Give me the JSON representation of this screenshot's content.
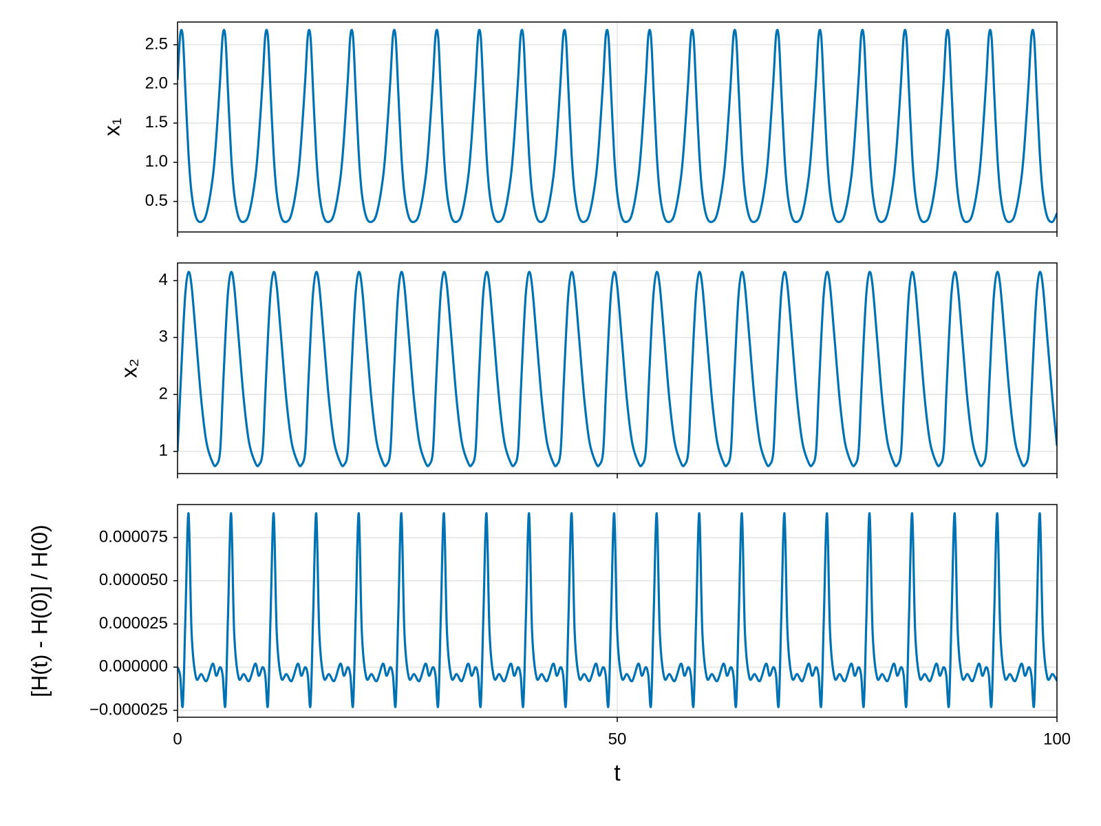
{
  "chart_data": {
    "type": "line",
    "xlabel": "t",
    "xlim": [
      0,
      100
    ],
    "xticks": [
      0,
      50,
      100
    ],
    "grid": true,
    "x": [
      0,
      0.3,
      0.6,
      0.9,
      1.25,
      1.6,
      2.1,
      2.7,
      3.3,
      4,
      4.4,
      4.84,
      5.14,
      5.44,
      5.74,
      6.09,
      6.44,
      6.94,
      7.54,
      8.14,
      8.84,
      9.24,
      9.68,
      9.98,
      10.28,
      10.58,
      10.93,
      11.28,
      11.78,
      12.38,
      12.98,
      13.68,
      14.08,
      14.52,
      14.82,
      15.12,
      15.42,
      15.77,
      16.12,
      16.62,
      17.22,
      17.82,
      18.52,
      18.92,
      19.36,
      19.66,
      19.96,
      20.26,
      20.61,
      20.96,
      21.46,
      22.06,
      22.66,
      23.36,
      23.76,
      24.2,
      24.5,
      24.8,
      25.1,
      25.45,
      25.8,
      26.3,
      26.9,
      27.5,
      28.2,
      28.6,
      29.04,
      29.34,
      29.64,
      29.94,
      30.29,
      30.64,
      31.14,
      31.74,
      32.34,
      33.04,
      33.44,
      33.88,
      34.18,
      34.48,
      34.78,
      35.13,
      35.48,
      35.98,
      36.58,
      37.18,
      37.88,
      38.28,
      38.72,
      39.02,
      39.32,
      39.62,
      39.97,
      40.32,
      40.82,
      41.42,
      42.02,
      42.72,
      43.12,
      43.56,
      43.86,
      44.16,
      44.46,
      44.81,
      45.16,
      45.66,
      46.26,
      46.86,
      47.56,
      47.96,
      48.4,
      48.7,
      49,
      49.3,
      49.65,
      50,
      50.5,
      51.1,
      51.7,
      52.4,
      52.8,
      53.24,
      53.54,
      53.84,
      54.14,
      54.49,
      54.84,
      55.34,
      55.94,
      56.54,
      57.24,
      57.64,
      58.08,
      58.38,
      58.68,
      58.98,
      59.33,
      59.68,
      60.18,
      60.78,
      61.38,
      62.08,
      62.48,
      62.92,
      63.22,
      63.52,
      63.82,
      64.17,
      64.52,
      65.02,
      65.62,
      66.22,
      66.92,
      67.32,
      67.76,
      68.06,
      68.36,
      68.66,
      69.01,
      69.36,
      69.86,
      70.46,
      71.06,
      71.76,
      72.16,
      72.6,
      72.9,
      73.2,
      73.5,
      73.85,
      74.2,
      74.7,
      75.3,
      75.9,
      76.6,
      77,
      77.44,
      77.74,
      78.04,
      78.34,
      78.69,
      79.04,
      79.54,
      80.14,
      80.74,
      81.44,
      81.84,
      82.28,
      82.58,
      82.88,
      83.18,
      83.53,
      83.88,
      84.38,
      84.98,
      85.58,
      86.28,
      86.68,
      87.12,
      87.42,
      87.72,
      88.02,
      88.37,
      88.72,
      89.22,
      89.82,
      90.42,
      91.12,
      91.52,
      91.96,
      92.26,
      92.56,
      92.86,
      93.21,
      93.56,
      94.06,
      94.66,
      95.26,
      95.96,
      96.36,
      96.8,
      97.1,
      97.4,
      97.7,
      98.05,
      98.4,
      98.9,
      99.5,
      100
    ],
    "panels": [
      {
        "ylabel": "x₁",
        "ylim": [
          0.11,
          2.79
        ],
        "yticks": [
          0.5,
          {
            "value": 1,
            "label": "1.0"
          },
          1.5,
          {
            "value": 2,
            "label": "2.0"
          },
          2.5
        ],
        "series": [
          {
            "color": "#0072b2",
            "values": [
              2.05,
              2.62,
              2.6,
              1.9,
              1.1,
              0.6,
              0.3,
              0.24,
              0.35,
              0.8,
              1.3,
              2.05,
              2.62,
              2.6,
              1.9,
              1.1,
              0.6,
              0.3,
              0.24,
              0.35,
              0.8,
              1.3,
              2.05,
              2.62,
              2.6,
              1.9,
              1.1,
              0.6,
              0.3,
              0.24,
              0.35,
              0.8,
              1.3,
              2.05,
              2.62,
              2.6,
              1.9,
              1.1,
              0.6,
              0.3,
              0.24,
              0.35,
              0.8,
              1.3,
              2.05,
              2.62,
              2.6,
              1.9,
              1.1,
              0.6,
              0.3,
              0.24,
              0.35,
              0.8,
              1.3,
              2.05,
              2.62,
              2.6,
              1.9,
              1.1,
              0.6,
              0.3,
              0.24,
              0.35,
              0.8,
              1.3,
              2.05,
              2.62,
              2.6,
              1.9,
              1.1,
              0.6,
              0.3,
              0.24,
              0.35,
              0.8,
              1.3,
              2.05,
              2.62,
              2.6,
              1.9,
              1.1,
              0.6,
              0.3,
              0.24,
              0.35,
              0.8,
              1.3,
              2.05,
              2.62,
              2.6,
              1.9,
              1.1,
              0.6,
              0.3,
              0.24,
              0.35,
              0.8,
              1.3,
              2.05,
              2.62,
              2.6,
              1.9,
              1.1,
              0.6,
              0.3,
              0.24,
              0.35,
              0.8,
              1.3,
              2.05,
              2.62,
              2.6,
              1.9,
              1.1,
              0.6,
              0.3,
              0.24,
              0.35,
              0.8,
              1.3,
              2.05,
              2.62,
              2.6,
              1.9,
              1.1,
              0.6,
              0.3,
              0.24,
              0.35,
              0.8,
              1.3,
              2.05,
              2.62,
              2.6,
              1.9,
              1.1,
              0.6,
              0.3,
              0.24,
              0.35,
              0.8,
              1.3,
              2.05,
              2.62,
              2.6,
              1.9,
              1.1,
              0.6,
              0.3,
              0.24,
              0.35,
              0.8,
              1.3,
              2.05,
              2.62,
              2.6,
              1.9,
              1.1,
              0.6,
              0.3,
              0.24,
              0.35,
              0.8,
              1.3,
              2.05,
              2.62,
              2.6,
              1.9,
              1.1,
              0.6,
              0.3,
              0.24,
              0.35,
              0.8,
              1.3,
              2.05,
              2.62,
              2.6,
              1.9,
              1.1,
              0.6,
              0.3,
              0.24,
              0.35,
              0.8,
              1.3,
              2.05,
              2.62,
              2.6,
              1.9,
              1.1,
              0.6,
              0.3,
              0.24,
              0.35,
              0.8,
              1.3,
              2.05,
              2.62,
              2.6,
              1.9,
              1.1,
              0.6,
              0.3,
              0.24,
              0.35,
              0.8,
              1.3,
              2.05,
              2.62,
              2.6,
              1.9,
              1.1,
              0.6,
              0.3,
              0.24,
              0.35,
              0.8,
              1.3,
              2.05,
              2.62,
              2.6,
              1.9,
              1.1,
              0.6,
              0.3,
              0.24,
              0.35
            ]
          }
        ]
      },
      {
        "ylabel": "x₂",
        "ylim": [
          0.61,
          4.31
        ],
        "yticks": [
          1,
          2,
          3,
          4
        ],
        "series": [
          {
            "color": "#0072b2",
            "values": [
              1,
              2,
              3,
              3.8,
              4.15,
              3.9,
              3,
              1.9,
              1.15,
              0.8,
              0.76,
              1,
              2,
              3,
              3.8,
              4.15,
              3.9,
              3,
              1.9,
              1.15,
              0.8,
              0.76,
              1,
              2,
              3,
              3.8,
              4.15,
              3.9,
              3,
              1.9,
              1.15,
              0.8,
              0.76,
              1,
              2,
              3,
              3.8,
              4.15,
              3.9,
              3,
              1.9,
              1.15,
              0.8,
              0.76,
              1,
              2,
              3,
              3.8,
              4.15,
              3.9,
              3,
              1.9,
              1.15,
              0.8,
              0.76,
              1,
              2,
              3,
              3.8,
              4.15,
              3.9,
              3,
              1.9,
              1.15,
              0.8,
              0.76,
              1,
              2,
              3,
              3.8,
              4.15,
              3.9,
              3,
              1.9,
              1.15,
              0.8,
              0.76,
              1,
              2,
              3,
              3.8,
              4.15,
              3.9,
              3,
              1.9,
              1.15,
              0.8,
              0.76,
              1,
              2,
              3,
              3.8,
              4.15,
              3.9,
              3,
              1.9,
              1.15,
              0.8,
              0.76,
              1,
              2,
              3,
              3.8,
              4.15,
              3.9,
              3,
              1.9,
              1.15,
              0.8,
              0.76,
              1,
              2,
              3,
              3.8,
              4.15,
              3.9,
              3,
              1.9,
              1.15,
              0.8,
              0.76,
              1,
              2,
              3,
              3.8,
              4.15,
              3.9,
              3,
              1.9,
              1.15,
              0.8,
              0.76,
              1,
              2,
              3,
              3.8,
              4.15,
              3.9,
              3,
              1.9,
              1.15,
              0.8,
              0.76,
              1,
              2,
              3,
              3.8,
              4.15,
              3.9,
              3,
              1.9,
              1.15,
              0.8,
              0.76,
              1,
              2,
              3,
              3.8,
              4.15,
              3.9,
              3,
              1.9,
              1.15,
              0.8,
              0.76,
              1,
              2,
              3,
              3.8,
              4.15,
              3.9,
              3,
              1.9,
              1.15,
              0.8,
              0.76,
              1,
              2,
              3,
              3.8,
              4.15,
              3.9,
              3,
              1.9,
              1.15,
              0.8,
              0.76,
              1,
              2,
              3,
              3.8,
              4.15,
              3.9,
              3,
              1.9,
              1.15,
              0.8,
              0.76,
              1,
              2,
              3,
              3.8,
              4.15,
              3.9,
              3,
              1.9,
              1.15,
              0.8,
              0.76,
              1,
              2,
              3,
              3.8,
              4.15,
              3.9,
              3,
              1.9,
              1.15,
              0.8,
              0.76,
              1,
              2,
              3,
              3.8,
              4.15,
              3.9,
              3,
              1.9,
              1.1
            ]
          }
        ]
      },
      {
        "ylabel": "[H(t) - H(0)] / H(0)",
        "ylim": [
          -2.9e-05,
          9.41e-05
        ],
        "yticks": [
          {
            "value": -2.5e-05,
            "label": "−0.000025"
          },
          {
            "value": 0,
            "label": "0.000000"
          },
          {
            "value": 2.5e-05,
            "label": "0.000025"
          },
          {
            "value": 5e-05,
            "label": "0.000050"
          },
          {
            "value": 7.5e-05,
            "label": "0.000075"
          }
        ],
        "series": [
          {
            "color": "#0072b2",
            "values": [
              0,
              -5e-06,
              -2.2e-05,
              3e-05,
              8.9e-05,
              2e-05,
              -6e-06,
              -4e-06,
              -8e-06,
              2e-06,
              -5e-06,
              0,
              -5e-06,
              -2.2e-05,
              3e-05,
              8.9e-05,
              2e-05,
              -6e-06,
              -4e-06,
              -8e-06,
              2e-06,
              -5e-06,
              0,
              -5e-06,
              -2.2e-05,
              3e-05,
              8.9e-05,
              2e-05,
              -6e-06,
              -4e-06,
              -8e-06,
              2e-06,
              -5e-06,
              0,
              -5e-06,
              -2.2e-05,
              3e-05,
              8.9e-05,
              2e-05,
              -6e-06,
              -4e-06,
              -8e-06,
              2e-06,
              -5e-06,
              0,
              -5e-06,
              -2.2e-05,
              3e-05,
              8.9e-05,
              2e-05,
              -6e-06,
              -4e-06,
              -8e-06,
              2e-06,
              -5e-06,
              0,
              -5e-06,
              -2.2e-05,
              3e-05,
              8.9e-05,
              2e-05,
              -6e-06,
              -4e-06,
              -8e-06,
              2e-06,
              -5e-06,
              0,
              -5e-06,
              -2.2e-05,
              3e-05,
              8.9e-05,
              2e-05,
              -6e-06,
              -4e-06,
              -8e-06,
              2e-06,
              -5e-06,
              0,
              -5e-06,
              -2.2e-05,
              3e-05,
              8.9e-05,
              2e-05,
              -6e-06,
              -4e-06,
              -8e-06,
              2e-06,
              -5e-06,
              0,
              -5e-06,
              -2.2e-05,
              3e-05,
              8.9e-05,
              2e-05,
              -6e-06,
              -4e-06,
              -8e-06,
              2e-06,
              -5e-06,
              0,
              -5e-06,
              -2.2e-05,
              3e-05,
              8.9e-05,
              2e-05,
              -6e-06,
              -4e-06,
              -8e-06,
              2e-06,
              -5e-06,
              0,
              -5e-06,
              -2.2e-05,
              3e-05,
              8.9e-05,
              2e-05,
              -6e-06,
              -4e-06,
              -8e-06,
              2e-06,
              -5e-06,
              0,
              -5e-06,
              -2.2e-05,
              3e-05,
              8.9e-05,
              2e-05,
              -6e-06,
              -4e-06,
              -8e-06,
              2e-06,
              -5e-06,
              0,
              -5e-06,
              -2.2e-05,
              3e-05,
              8.9e-05,
              2e-05,
              -6e-06,
              -4e-06,
              -8e-06,
              2e-06,
              -5e-06,
              0,
              -5e-06,
              -2.2e-05,
              3e-05,
              8.9e-05,
              2e-05,
              -6e-06,
              -4e-06,
              -8e-06,
              2e-06,
              -5e-06,
              0,
              -5e-06,
              -2.2e-05,
              3e-05,
              8.9e-05,
              2e-05,
              -6e-06,
              -4e-06,
              -8e-06,
              2e-06,
              -5e-06,
              0,
              -5e-06,
              -2.2e-05,
              3e-05,
              8.9e-05,
              2e-05,
              -6e-06,
              -4e-06,
              -8e-06,
              2e-06,
              -5e-06,
              0,
              -5e-06,
              -2.2e-05,
              3e-05,
              8.9e-05,
              2e-05,
              -6e-06,
              -4e-06,
              -8e-06,
              2e-06,
              -5e-06,
              0,
              -5e-06,
              -2.2e-05,
              3e-05,
              8.9e-05,
              2e-05,
              -6e-06,
              -4e-06,
              -8e-06,
              2e-06,
              -5e-06,
              0,
              -5e-06,
              -2.2e-05,
              3e-05,
              8.9e-05,
              2e-05,
              -6e-06,
              -4e-06,
              -8e-06,
              2e-06,
              -5e-06,
              0,
              -5e-06,
              -2.2e-05,
              3e-05,
              8.9e-05,
              2e-05,
              -6e-06,
              -4e-06,
              -8e-06,
              2e-06,
              -5e-06,
              0,
              -5e-06,
              -2.2e-05,
              3e-05,
              8.9e-05,
              2e-05,
              -6e-06,
              -4e-06,
              -8e-06
            ]
          }
        ]
      }
    ]
  }
}
